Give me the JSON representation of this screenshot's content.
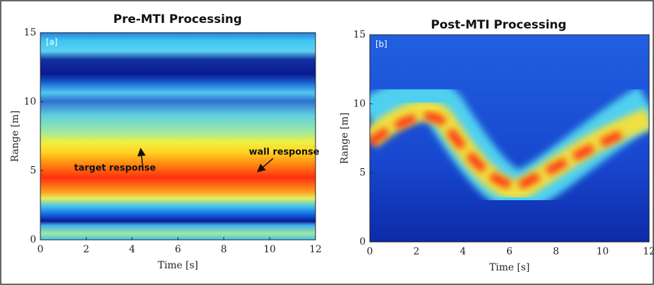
{
  "chart_data": [
    {
      "type": "heatmap",
      "title": "Pre-MTI Processing",
      "panel_label": "[a]",
      "xlabel": "Time [s]",
      "ylabel": "Range [m]",
      "xlim": [
        0,
        12
      ],
      "ylim": [
        0,
        15
      ],
      "xticks": [
        0,
        2,
        4,
        6,
        8,
        10,
        12
      ],
      "yticks": [
        0,
        5,
        10,
        15
      ],
      "annotations": [
        "target response",
        "wall response"
      ]
    },
    {
      "type": "heatmap",
      "title": "Post-MTI Processing",
      "panel_label": "[b]",
      "xlabel": "Time [s]",
      "ylabel": "Range [m]",
      "xlim": [
        0,
        12
      ],
      "ylim": [
        0,
        15
      ],
      "xticks": [
        0,
        2,
        4,
        6,
        8,
        10,
        12
      ],
      "yticks": [
        0,
        5,
        10,
        15
      ]
    }
  ]
}
